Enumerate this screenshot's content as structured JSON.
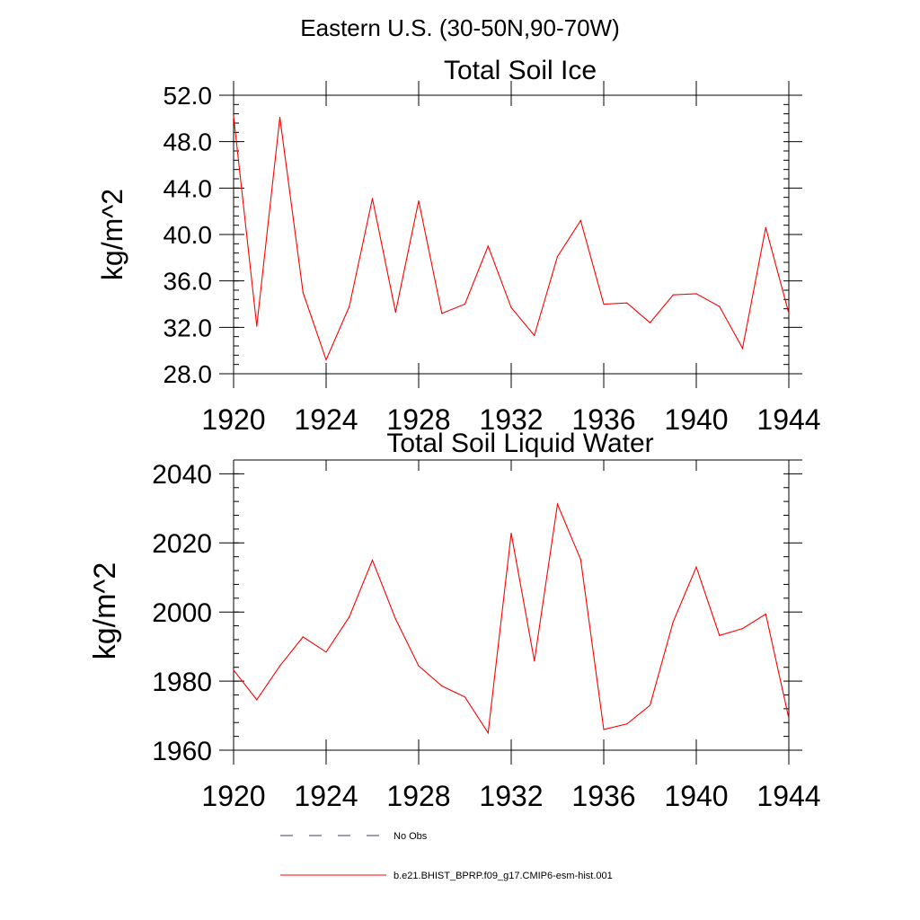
{
  "suptitle": "Eastern U.S. (30-50N,90-70W)",
  "colors": {
    "model_line": "#ff0000",
    "obs_line": "#3a3a8c",
    "axis": "#000000",
    "background": "#ffffff"
  },
  "legend": {
    "placement": "bottom",
    "entries": [
      {
        "label": "No Obs",
        "style": "dashed",
        "color": "#3a3a8c"
      },
      {
        "label": "b.e21.BHIST_BPRP.f09_g17.CMIP6-esm-hist.001",
        "style": "solid",
        "color": "#ff0000"
      }
    ]
  },
  "chart_data": [
    {
      "type": "line",
      "title": "Total Soil Ice",
      "xlabel": "",
      "ylabel": "kg/m^2",
      "xlim": [
        1920,
        1944
      ],
      "ylim": [
        28,
        52
      ],
      "x_major_ticks": [
        1920,
        1924,
        1928,
        1932,
        1936,
        1940,
        1944
      ],
      "x_tick_labels": [
        "1920",
        "1924",
        "1928",
        "1932",
        "1936",
        "1940",
        "1944"
      ],
      "y_major_ticks": [
        28,
        32,
        36,
        40,
        44,
        48,
        52
      ],
      "y_tick_labels": [
        "28.0",
        "32.0",
        "36.0",
        "40.0",
        "44.0",
        "48.0",
        "52.0"
      ],
      "y_minor_step": 0.8,
      "grid": false,
      "series": [
        {
          "name": "b.e21.BHIST_BPRP.f09_g17.CMIP6-esm-hist.001",
          "color": "#ff0000",
          "x": [
            1920,
            1921,
            1922,
            1923,
            1924,
            1925,
            1926,
            1927,
            1928,
            1929,
            1930,
            1931,
            1932,
            1933,
            1934,
            1935,
            1936,
            1937,
            1938,
            1939,
            1940,
            1941,
            1942,
            1943,
            1944
          ],
          "y": [
            50.2,
            32.1,
            50.1,
            35.0,
            29.2,
            33.8,
            43.1,
            33.3,
            42.9,
            33.2,
            34.0,
            39.0,
            33.7,
            31.3,
            38.1,
            41.2,
            34.0,
            34.1,
            32.4,
            34.8,
            34.9,
            33.8,
            30.2,
            40.6,
            33.2
          ]
        }
      ]
    },
    {
      "type": "line",
      "title": "Total Soil Liquid Water",
      "xlabel": "",
      "ylabel": "kg/m^2",
      "xlim": [
        1920,
        1944
      ],
      "ylim": [
        1960,
        2044
      ],
      "x_major_ticks": [
        1920,
        1924,
        1928,
        1932,
        1936,
        1940,
        1944
      ],
      "x_tick_labels": [
        "1920",
        "1924",
        "1928",
        "1932",
        "1936",
        "1940",
        "1944"
      ],
      "y_major_ticks": [
        1960,
        1980,
        2000,
        2020,
        2040
      ],
      "y_tick_labels": [
        "1960",
        "1980",
        "2000",
        "2020",
        "2040"
      ],
      "y_minor_step": 4,
      "grid": false,
      "series": [
        {
          "name": "b.e21.BHIST_BPRP.f09_g17.CMIP6-esm-hist.001",
          "color": "#ff0000",
          "x": [
            1920,
            1921,
            1922,
            1923,
            1924,
            1925,
            1926,
            1927,
            1928,
            1929,
            1930,
            1931,
            1932,
            1933,
            1934,
            1935,
            1936,
            1937,
            1938,
            1939,
            1940,
            1941,
            1942,
            1943,
            1944
          ],
          "y": [
            1983.2,
            1974.6,
            1984.4,
            1992.8,
            1988.4,
            1998.6,
            2015.0,
            1998.0,
            1984.4,
            1978.6,
            1975.4,
            1965.0,
            2022.8,
            1985.8,
            2031.2,
            2015.2,
            1966.0,
            1967.6,
            1973.0,
            1997.2,
            2013.0,
            1993.2,
            1995.2,
            1999.4,
            1969.2
          ]
        }
      ]
    }
  ]
}
